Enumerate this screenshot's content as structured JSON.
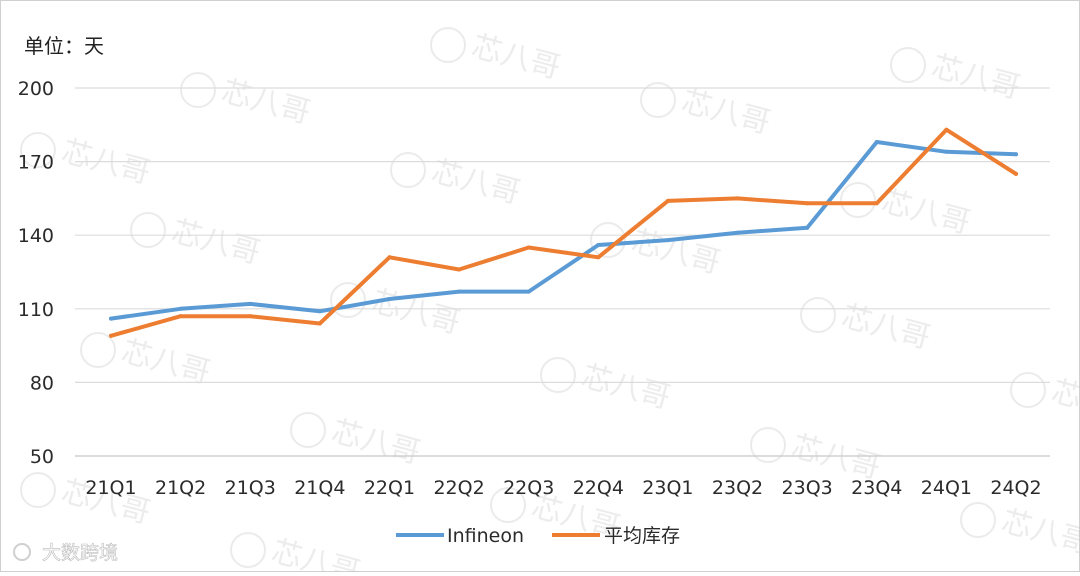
{
  "chart_data": {
    "type": "line",
    "unit_label": "单位：天",
    "categories": [
      "21Q1",
      "21Q2",
      "21Q3",
      "21Q4",
      "22Q1",
      "22Q2",
      "22Q3",
      "22Q4",
      "23Q1",
      "23Q2",
      "23Q3",
      "23Q4",
      "24Q1",
      "24Q2"
    ],
    "series": [
      {
        "name": "Infineon",
        "color": "#5b9bd5",
        "values": [
          106,
          110,
          112,
          109,
          114,
          117,
          117,
          136,
          138,
          141,
          143,
          178,
          174,
          173
        ]
      },
      {
        "name": "平均库存",
        "color": "#ed7d31",
        "values": [
          99,
          107,
          107,
          104,
          131,
          126,
          135,
          131,
          154,
          155,
          153,
          153,
          183,
          165
        ]
      }
    ],
    "ylim": [
      50,
      200
    ],
    "yticks": [
      200,
      170,
      140,
      110,
      80,
      50
    ],
    "grid": true,
    "legend_position": "bottom"
  },
  "watermark": {
    "text": "芯八哥",
    "footer_text": "大数跨境"
  }
}
